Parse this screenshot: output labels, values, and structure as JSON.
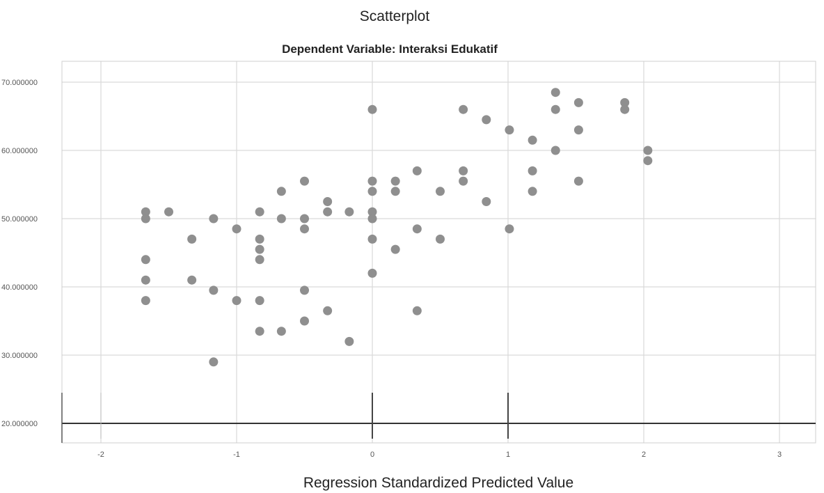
{
  "chart_data": {
    "type": "scatter",
    "title": "Scatterplot",
    "subtitle": "Dependent Variable: Interaksi Edukatif",
    "xlabel": "Regression Standardized Predicted Value",
    "ylabel": "",
    "xlim": [
      -2.1,
      3.2
    ],
    "ylim": [
      17.5,
      72
    ],
    "x_ticks": [
      -2,
      -1,
      0,
      1,
      2,
      3
    ],
    "x_tick_labels": [
      "-2",
      "-1",
      "0",
      "1",
      "2",
      "3"
    ],
    "y_ticks": [
      20,
      30,
      40,
      50,
      60,
      70
    ],
    "y_tick_labels": [
      "20.000000",
      "30.000000",
      "40.000000",
      "50.000000",
      "60.000000",
      "70.000000"
    ],
    "grid": true,
    "points": [
      {
        "x": -1.67,
        "y": 51
      },
      {
        "x": -1.67,
        "y": 50
      },
      {
        "x": -1.67,
        "y": 44
      },
      {
        "x": -1.67,
        "y": 41
      },
      {
        "x": -1.67,
        "y": 38
      },
      {
        "x": -1.5,
        "y": 51
      },
      {
        "x": -1.33,
        "y": 47
      },
      {
        "x": -1.33,
        "y": 41
      },
      {
        "x": -1.17,
        "y": 50
      },
      {
        "x": -1.17,
        "y": 39.5
      },
      {
        "x": -1.17,
        "y": 29
      },
      {
        "x": -1.0,
        "y": 48.5
      },
      {
        "x": -1.0,
        "y": 38
      },
      {
        "x": -0.83,
        "y": 51
      },
      {
        "x": -0.83,
        "y": 47
      },
      {
        "x": -0.83,
        "y": 45.5
      },
      {
        "x": -0.83,
        "y": 44
      },
      {
        "x": -0.83,
        "y": 38
      },
      {
        "x": -0.83,
        "y": 33.5
      },
      {
        "x": -0.67,
        "y": 54
      },
      {
        "x": -0.67,
        "y": 50
      },
      {
        "x": -0.67,
        "y": 33.5
      },
      {
        "x": -0.5,
        "y": 55.5
      },
      {
        "x": -0.5,
        "y": 50
      },
      {
        "x": -0.5,
        "y": 48.5
      },
      {
        "x": -0.5,
        "y": 39.5
      },
      {
        "x": -0.5,
        "y": 35
      },
      {
        "x": -0.33,
        "y": 52.5
      },
      {
        "x": -0.33,
        "y": 51
      },
      {
        "x": -0.33,
        "y": 36.5
      },
      {
        "x": -0.17,
        "y": 51
      },
      {
        "x": -0.17,
        "y": 32
      },
      {
        "x": 0.0,
        "y": 66
      },
      {
        "x": 0.0,
        "y": 55.5
      },
      {
        "x": 0.0,
        "y": 54
      },
      {
        "x": 0.0,
        "y": 51
      },
      {
        "x": 0.0,
        "y": 50
      },
      {
        "x": 0.0,
        "y": 47
      },
      {
        "x": 0.0,
        "y": 42
      },
      {
        "x": 0.17,
        "y": 55.5
      },
      {
        "x": 0.17,
        "y": 54
      },
      {
        "x": 0.17,
        "y": 45.5
      },
      {
        "x": 0.33,
        "y": 57
      },
      {
        "x": 0.33,
        "y": 48.5
      },
      {
        "x": 0.33,
        "y": 36.5
      },
      {
        "x": 0.5,
        "y": 54
      },
      {
        "x": 0.5,
        "y": 47
      },
      {
        "x": 0.67,
        "y": 66
      },
      {
        "x": 0.67,
        "y": 57
      },
      {
        "x": 0.67,
        "y": 55.5
      },
      {
        "x": 0.84,
        "y": 64.5
      },
      {
        "x": 0.84,
        "y": 52.5
      },
      {
        "x": 1.01,
        "y": 63
      },
      {
        "x": 1.01,
        "y": 48.5
      },
      {
        "x": 1.18,
        "y": 61.5
      },
      {
        "x": 1.18,
        "y": 57
      },
      {
        "x": 1.18,
        "y": 54
      },
      {
        "x": 1.35,
        "y": 68.5
      },
      {
        "x": 1.35,
        "y": 66
      },
      {
        "x": 1.35,
        "y": 60
      },
      {
        "x": 1.52,
        "y": 67
      },
      {
        "x": 1.52,
        "y": 63
      },
      {
        "x": 1.52,
        "y": 55.5
      },
      {
        "x": 1.86,
        "y": 67
      },
      {
        "x": 1.86,
        "y": 66
      },
      {
        "x": 2.03,
        "y": 60
      },
      {
        "x": 2.03,
        "y": 58.5
      }
    ]
  }
}
